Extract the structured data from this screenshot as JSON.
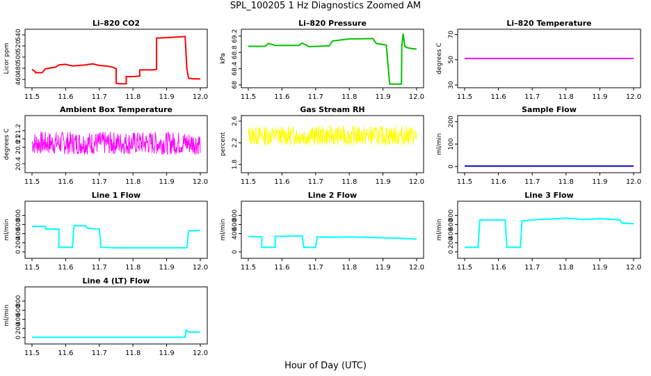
{
  "figure": {
    "title": "SPL_100205  1 Hz Diagnostics Zoomed AM",
    "xlabel": "Hour of Day (UTC)"
  },
  "chart_data": [
    {
      "type": "line",
      "title": "Li–820 CO2",
      "ylabel": "Licor ppm",
      "color": "#ff0000",
      "xlim": [
        11.5,
        12.0
      ],
      "ylim": [
        450,
        545
      ],
      "yticks": [
        460,
        480,
        500,
        520,
        540
      ],
      "xticks": [
        11.5,
        11.6,
        11.7,
        11.8,
        11.9,
        12.0
      ],
      "x": [
        11.5,
        11.51,
        11.51,
        11.53,
        11.54,
        11.55,
        11.57,
        11.58,
        11.6,
        11.62,
        11.64,
        11.66,
        11.68,
        11.7,
        11.72,
        11.74,
        11.75,
        11.75,
        11.76,
        11.78,
        11.78,
        11.8,
        11.82,
        11.82,
        11.84,
        11.86,
        11.87,
        11.87,
        11.9,
        11.93,
        11.955,
        11.96,
        11.965,
        11.98,
        12.0
      ],
      "y": [
        478,
        474,
        472,
        472,
        479,
        480,
        482,
        486,
        487,
        484,
        485,
        486,
        488,
        485,
        484,
        482,
        479,
        453,
        452,
        452,
        465,
        465,
        466,
        477,
        477,
        477,
        478,
        534,
        535,
        536,
        537,
        480,
        462,
        461,
        461
      ]
    },
    {
      "type": "line",
      "title": "Li–820 Pressure",
      "ylabel": "kPa",
      "color": "#00c000",
      "xlim": [
        11.5,
        12.0
      ],
      "ylim": [
        68.0,
        69.3
      ],
      "yticks": [
        68.0,
        68.4,
        68.8,
        69.2
      ],
      "xticks": [
        11.5,
        11.6,
        11.7,
        11.8,
        11.9,
        12.0
      ],
      "x": [
        11.5,
        11.55,
        11.56,
        11.58,
        11.65,
        11.66,
        11.68,
        11.74,
        11.75,
        11.8,
        11.87,
        11.88,
        11.91,
        11.92,
        11.955,
        11.956,
        11.96,
        11.965,
        11.97,
        11.98,
        12.0
      ],
      "y": [
        68.95,
        68.95,
        69.02,
        68.97,
        68.97,
        69.03,
        68.94,
        68.96,
        69.08,
        69.13,
        69.14,
        69.02,
        68.98,
        68.02,
        68.02,
        68.95,
        69.26,
        68.95,
        68.92,
        68.9,
        68.88
      ]
    },
    {
      "type": "line",
      "title": "Li–820 Temperature",
      "ylabel": "degrees C",
      "color": "#ff00ff",
      "xlim": [
        11.5,
        12.0
      ],
      "ylim": [
        30,
        72
      ],
      "yticks": [
        30,
        50,
        70
      ],
      "xticks": [
        11.5,
        11.6,
        11.7,
        11.8,
        11.9,
        12.0
      ],
      "x": [
        11.5,
        12.0
      ],
      "y": [
        51,
        51
      ]
    },
    {
      "type": "line",
      "title": "Ambient Box Temperature",
      "ylabel": "degrees C",
      "color": "#ff00ff",
      "xlim": [
        11.5,
        12.0
      ],
      "ylim": [
        20.25,
        21.5
      ],
      "yticks": [
        20.4,
        20.8,
        21.0,
        21.2
      ],
      "xticks": [
        11.5,
        11.6,
        11.7,
        11.8,
        11.9,
        12.0
      ],
      "noise": {
        "base": 20.9,
        "amp": 0.28,
        "seed": 7,
        "n": 420
      },
      "x": [],
      "y": []
    },
    {
      "type": "line",
      "title": "Gas Stream RH",
      "ylabel": "percent",
      "color": "#ffff00",
      "xlim": [
        11.5,
        12.0
      ],
      "ylim": [
        1.7,
        2.65
      ],
      "yticks": [
        1.8,
        2.2,
        2.6
      ],
      "xticks": [
        11.5,
        11.6,
        11.7,
        11.8,
        11.9,
        12.0
      ],
      "noise": {
        "base": 2.33,
        "amp": 0.18,
        "seed": 13,
        "n": 420
      },
      "x": [],
      "y": []
    },
    {
      "type": "line",
      "title": "Sample Flow",
      "ylabel": "ml/min",
      "color": "#0000cc",
      "xlim": [
        11.5,
        12.0
      ],
      "ylim": [
        -15,
        215
      ],
      "yticks": [
        0,
        100,
        200
      ],
      "xticks": [
        11.5,
        11.6,
        11.7,
        11.8,
        11.9,
        12.0
      ],
      "x": [
        11.5,
        12.0
      ],
      "y": [
        2,
        2
      ]
    },
    {
      "type": "line",
      "title": "Line 1 Flow",
      "ylabel": "ml/min",
      "color": "#00ffff",
      "xlim": [
        11.5,
        12.0
      ],
      "ylim": [
        -80,
        1050
      ],
      "yticks": [
        0,
        200,
        400,
        600,
        800
      ],
      "xticks": [
        11.5,
        11.6,
        11.7,
        11.8,
        11.9,
        12.0
      ],
      "x": [
        11.5,
        11.54,
        11.54,
        11.58,
        11.58,
        11.62,
        11.625,
        11.66,
        11.665,
        11.7,
        11.705,
        11.75,
        11.96,
        11.965,
        12.0
      ],
      "y": [
        560,
        560,
        500,
        500,
        100,
        100,
        580,
        570,
        520,
        500,
        100,
        90,
        90,
        460,
        470
      ]
    },
    {
      "type": "line",
      "title": "Line 2 Flow",
      "ylabel": "ml/min",
      "color": "#00ffff",
      "xlim": [
        11.5,
        12.0
      ],
      "ylim": [
        -80,
        1050
      ],
      "yticks": [
        0,
        400,
        600,
        800
      ],
      "xticks": [
        11.5,
        11.6,
        11.7,
        11.8,
        11.9,
        12.0
      ],
      "x": [
        11.5,
        11.54,
        11.54,
        11.58,
        11.58,
        11.66,
        11.665,
        11.7,
        11.705,
        11.75,
        11.8,
        11.85,
        11.9,
        11.95,
        12.0
      ],
      "y": [
        340,
        330,
        100,
        100,
        340,
        350,
        100,
        100,
        330,
        320,
        330,
        320,
        310,
        300,
        280
      ]
    },
    {
      "type": "line",
      "title": "Line 3 Flow",
      "ylabel": "ml/min",
      "color": "#00ffff",
      "xlim": [
        11.5,
        12.0
      ],
      "ylim": [
        -80,
        1050
      ],
      "yticks": [
        0,
        200,
        400,
        600,
        800
      ],
      "xticks": [
        11.5,
        11.6,
        11.7,
        11.8,
        11.9,
        12.0
      ],
      "x": [
        11.5,
        11.54,
        11.545,
        11.62,
        11.625,
        11.665,
        11.67,
        11.7,
        11.75,
        11.8,
        11.85,
        11.9,
        11.96,
        11.965,
        12.0
      ],
      "y": [
        100,
        100,
        700,
        700,
        100,
        100,
        680,
        700,
        720,
        740,
        710,
        730,
        700,
        630,
        620
      ]
    },
    {
      "type": "line",
      "title": "Line 4 (LT) Flow",
      "ylabel": "ml/min",
      "color": "#00ffff",
      "xlim": [
        11.5,
        12.0
      ],
      "ylim": [
        -80,
        1050
      ],
      "yticks": [
        0,
        200,
        400,
        600,
        800
      ],
      "xticks": [
        11.5,
        11.6,
        11.7,
        11.8,
        11.9,
        12.0
      ],
      "x": [
        11.5,
        11.955,
        11.958,
        11.965,
        12.0
      ],
      "y": [
        5,
        5,
        160,
        120,
        120
      ]
    }
  ]
}
